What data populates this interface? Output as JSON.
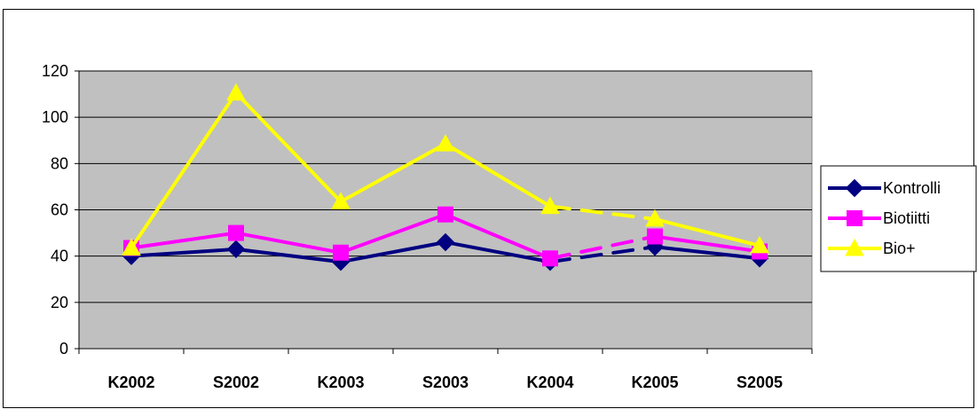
{
  "chart_data": {
    "type": "line",
    "title": "",
    "xlabel": "",
    "ylabel": "",
    "categories": [
      "K2002",
      "S2002",
      "K2003",
      "S2003",
      "K2004",
      "K2005",
      "S2005"
    ],
    "ylim": [
      0,
      120
    ],
    "yticks": [
      0,
      20,
      40,
      60,
      80,
      100,
      120
    ],
    "grid": true,
    "legend_position": "right",
    "plot_background": "#c0c0c0",
    "series": [
      {
        "name": "Kontrolli",
        "color": "#000080",
        "marker": "diamond",
        "values": [
          40,
          43,
          37.5,
          46,
          37.5,
          44,
          39
        ]
      },
      {
        "name": "Biotiitti",
        "color": "#ff00ff",
        "marker": "square",
        "values": [
          43.5,
          50,
          41.5,
          58,
          39,
          48.5,
          42
        ]
      },
      {
        "name": "Bio+",
        "color": "#ffff00",
        "marker": "triangle",
        "values": [
          43.5,
          110.5,
          63.5,
          88.5,
          61.5,
          56,
          44.5
        ]
      }
    ],
    "dashed_segments": [
      "K2004-K2005"
    ]
  }
}
